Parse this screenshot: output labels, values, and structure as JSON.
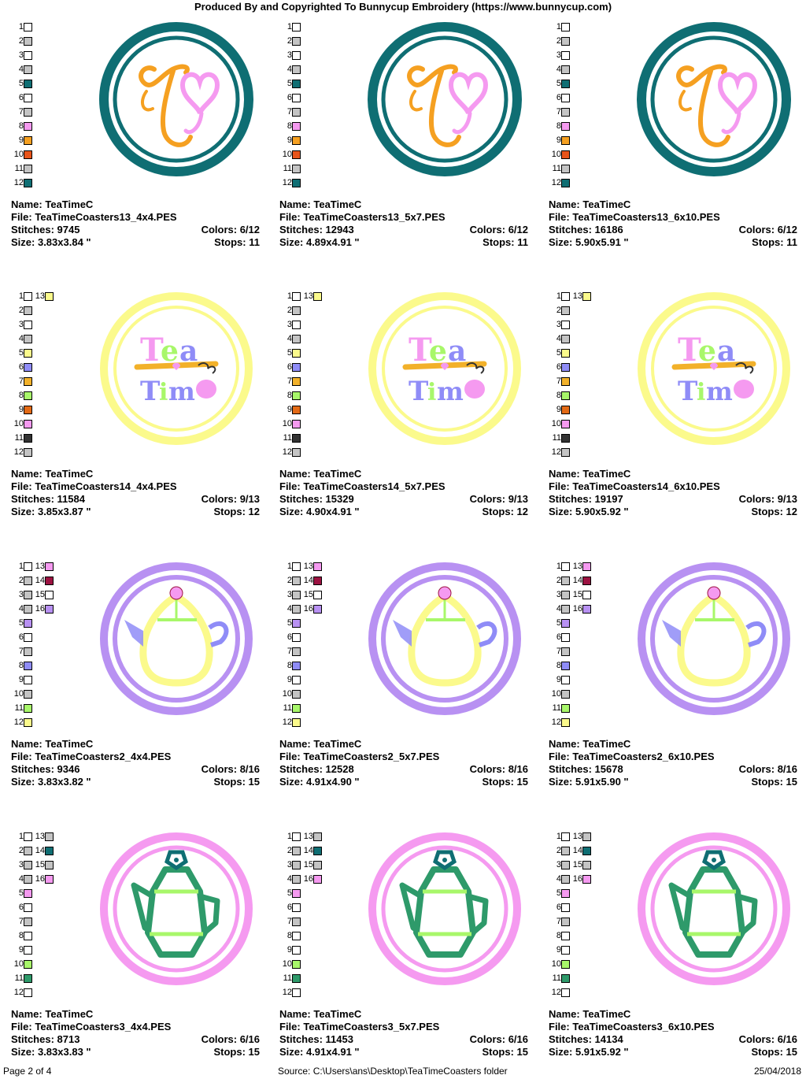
{
  "header": "Produced By and Copyrighted To Bunnycup Embroidery (https://www.bunnycup.com)",
  "colors": {
    "white": "#ffffff",
    "gray": "#c4c4c4",
    "teal": "#0f6e73",
    "pink": "#f59af0",
    "orange": "#f5a021",
    "redorange": "#e8541a",
    "yellow": "#fbfa8c",
    "blue": "#8f8cf7",
    "amber": "#f2b12a",
    "lime": "#a8f76a",
    "darkorange": "#e36a16",
    "dark": "#333333",
    "maroon": "#9c1241",
    "lavender": "#b891f2",
    "green": "#2e9a6a"
  },
  "labels": {
    "name": "Name:",
    "file": "File:",
    "stitches": "Stitches:",
    "colors": "Colors:",
    "size": "Size:",
    "stops": "Stops:"
  },
  "rows": [
    {
      "motif": "t-heart",
      "swatches": [
        "white",
        "gray",
        "white",
        "gray",
        "teal",
        "white",
        "gray",
        "pink",
        "orange",
        "redorange",
        "gray",
        "teal"
      ],
      "extra": [],
      "cells": [
        {
          "name": "TeaTimeC",
          "file": "TeaTimeCoasters13_4x4.PES",
          "stitches": "9745",
          "colors": "6/12",
          "size": "3.83x3.84 \"",
          "stops": "11"
        },
        {
          "name": "TeaTimeC",
          "file": "TeaTimeCoasters13_5x7.PES",
          "stitches": "12943",
          "colors": "6/12",
          "size": "4.89x4.91 \"",
          "stops": "11"
        },
        {
          "name": "TeaTimeC",
          "file": "TeaTimeCoasters13_6x10.PES",
          "stitches": "16186",
          "colors": "6/12",
          "size": "5.90x5.91 \"",
          "stops": "11"
        }
      ]
    },
    {
      "motif": "tea-time",
      "swatches": [
        "white",
        "gray",
        "white",
        "gray",
        "yellow",
        "blue",
        "amber",
        "lime",
        "darkorange",
        "pink",
        "dark",
        "gray"
      ],
      "extra": [
        "yellow"
      ],
      "cells": [
        {
          "name": "TeaTimeC",
          "file": "TeaTimeCoasters14_4x4.PES",
          "stitches": "11584",
          "colors": "9/13",
          "size": "3.85x3.87 \"",
          "stops": "12"
        },
        {
          "name": "TeaTimeC",
          "file": "TeaTimeCoasters14_5x7.PES",
          "stitches": "15329",
          "colors": "9/13",
          "size": "4.90x4.91 \"",
          "stops": "12"
        },
        {
          "name": "TeaTimeC",
          "file": "TeaTimeCoasters14_6x10.PES",
          "stitches": "19197",
          "colors": "9/13",
          "size": "5.90x5.92 \"",
          "stops": "12"
        }
      ]
    },
    {
      "motif": "teapot-round",
      "swatches": [
        "white",
        "gray",
        "gray",
        "gray",
        "lavender",
        "white",
        "gray",
        "blue",
        "white",
        "gray",
        "lime",
        "yellow"
      ],
      "extra": [
        "pink",
        "maroon",
        "white",
        "lavender"
      ],
      "cells": [
        {
          "name": "TeaTimeC",
          "file": "TeaTimeCoasters2_4x4.PES",
          "stitches": "9346",
          "colors": "8/16",
          "size": "3.83x3.82 \"",
          "stops": "15"
        },
        {
          "name": "TeaTimeC",
          "file": "TeaTimeCoasters2_5x7.PES",
          "stitches": "12528",
          "colors": "8/16",
          "size": "4.91x4.90 \"",
          "stops": "15"
        },
        {
          "name": "TeaTimeC",
          "file": "TeaTimeCoasters2_6x10.PES",
          "stitches": "15678",
          "colors": "8/16",
          "size": "5.91x5.90 \"",
          "stops": "15"
        }
      ]
    },
    {
      "motif": "teapot-angular",
      "swatches": [
        "white",
        "gray",
        "gray",
        "gray",
        "pink",
        "white",
        "gray",
        "white",
        "white",
        "lime",
        "green",
        "white"
      ],
      "extra": [
        "gray",
        "teal",
        "gray",
        "pink"
      ],
      "cells": [
        {
          "name": "TeaTimeC",
          "file": "TeaTimeCoasters3_4x4.PES",
          "stitches": "8713",
          "colors": "6/16",
          "size": "3.83x3.83 \"",
          "stops": "15"
        },
        {
          "name": "TeaTimeC",
          "file": "TeaTimeCoasters3_5x7.PES",
          "stitches": "11453",
          "colors": "6/16",
          "size": "4.91x4.91 \"",
          "stops": "15"
        },
        {
          "name": "TeaTimeC",
          "file": "TeaTimeCoasters3_6x10.PES",
          "stitches": "14134",
          "colors": "6/16",
          "size": "5.91x5.92 \"",
          "stops": "15"
        }
      ]
    }
  ],
  "footer": {
    "page": "Page 2 of 4",
    "source": "Source: C:\\Users\\ans\\Desktop\\TeaTimeCoasters folder",
    "date": "25/04/2018"
  }
}
